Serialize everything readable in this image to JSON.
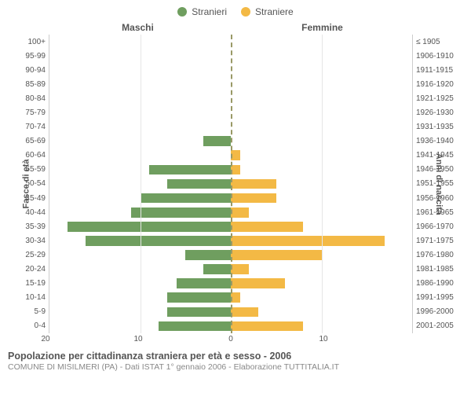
{
  "legend": {
    "male": {
      "label": "Stranieri",
      "color": "#6f9e5f"
    },
    "female": {
      "label": "Straniere",
      "color": "#f3b945"
    }
  },
  "columns": {
    "left_header": "Maschi",
    "right_header": "Femmine",
    "ylabel_left": "Fasce di età",
    "ylabel_right": "Anni di nascita"
  },
  "chart": {
    "type": "population-pyramid",
    "background_color": "#ffffff",
    "grid_color": "#e6e6e6",
    "centerline_color": "#999966",
    "x_max": 20,
    "x_ticks_left": [
      20,
      10,
      0
    ],
    "x_ticks_right": [
      0,
      10
    ],
    "age_bands": [
      "100+",
      "95-99",
      "90-94",
      "85-89",
      "80-84",
      "75-79",
      "70-74",
      "65-69",
      "60-64",
      "55-59",
      "50-54",
      "45-49",
      "40-44",
      "35-39",
      "30-34",
      "25-29",
      "20-24",
      "15-19",
      "10-14",
      "5-9",
      "0-4"
    ],
    "birth_bands": [
      "≤ 1905",
      "1906-1910",
      "1911-1915",
      "1916-1920",
      "1921-1925",
      "1926-1930",
      "1931-1935",
      "1936-1940",
      "1941-1945",
      "1946-1950",
      "1951-1955",
      "1956-1960",
      "1961-1965",
      "1966-1970",
      "1971-1975",
      "1976-1980",
      "1981-1985",
      "1986-1990",
      "1991-1995",
      "1996-2000",
      "2001-2005"
    ],
    "male_values": [
      0,
      0,
      0,
      0,
      0,
      0,
      0,
      3,
      0,
      9,
      7,
      10,
      11,
      18,
      16,
      5,
      3,
      6,
      7,
      7,
      8
    ],
    "female_values": [
      0,
      0,
      0,
      0,
      0,
      0,
      0,
      0,
      1,
      1,
      5,
      5,
      2,
      8,
      17,
      10,
      2,
      6,
      1,
      3,
      8
    ]
  },
  "footer": {
    "title": "Popolazione per cittadinanza straniera per età e sesso - 2006",
    "subtitle": "COMUNE DI MISILMERI (PA) - Dati ISTAT 1° gennaio 2006 - Elaborazione TUTTITALIA.IT"
  }
}
